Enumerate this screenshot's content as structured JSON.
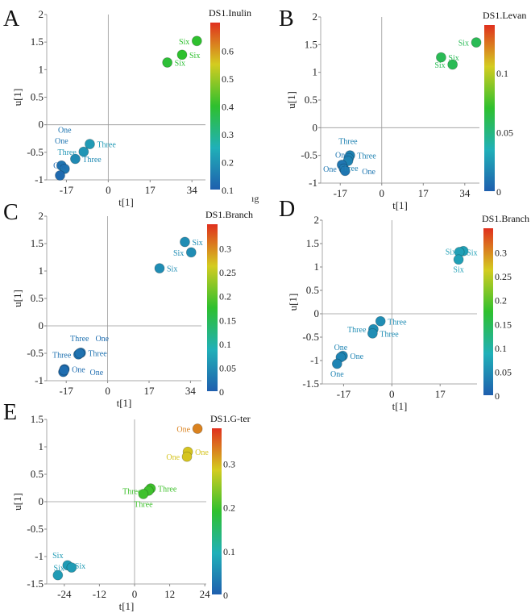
{
  "chart_data": [
    {
      "panel": "A",
      "type": "scatter",
      "xlabel": "t[1]",
      "ylabel": "u[1]",
      "xlim": [
        -25,
        39.5
      ],
      "ylim": [
        -1,
        2
      ],
      "xticks": [
        -17,
        0,
        17,
        34
      ],
      "yticks": [
        -1,
        -0.5,
        0,
        0.5,
        1,
        1.5,
        2
      ],
      "colorbar": {
        "title": "DS1.Inulin",
        "range": [
          0.1,
          0.7
        ],
        "ticks": [
          0.1,
          0.2,
          0.3,
          0.4,
          0.5,
          0.6
        ]
      },
      "points": [
        {
          "label": "Six",
          "x": 36,
          "y": 1.52,
          "c": 0.4
        },
        {
          "label": "Six",
          "x": 30,
          "y": 1.27,
          "c": 0.4
        },
        {
          "label": "Six",
          "x": 24,
          "y": 1.13,
          "c": 0.39
        },
        {
          "label": "Three",
          "x": -7.5,
          "y": -0.35,
          "c": 0.21
        },
        {
          "label": "Three",
          "x": -10,
          "y": -0.49,
          "c": 0.2
        },
        {
          "label": "Three",
          "x": -13.4,
          "y": -0.62,
          "c": 0.18
        },
        {
          "label": "One",
          "x": -19,
          "y": -0.74,
          "c": 0.14
        },
        {
          "label": "One",
          "x": -17.7,
          "y": -0.8,
          "c": 0.14
        },
        {
          "label": "One",
          "x": -19.6,
          "y": -0.92,
          "c": 0.12
        }
      ]
    },
    {
      "panel": "B",
      "type": "scatter",
      "xlabel": "t[1]",
      "ylabel": "u[1]",
      "xlim": [
        -25,
        40
      ],
      "ylim": [
        -1,
        2
      ],
      "xticks": [
        -17,
        0,
        17,
        34
      ],
      "yticks": [
        -1,
        -0.5,
        0,
        0.5,
        1,
        1.5,
        2
      ],
      "colorbar": {
        "title": "DS1.Levan",
        "range": [
          0,
          0.14
        ],
        "ticks": [
          0,
          0.05,
          0.1
        ]
      },
      "points": [
        {
          "label": "Six",
          "x": 38.7,
          "y": 1.54,
          "c": 0.06
        },
        {
          "label": "Six",
          "x": 24.3,
          "y": 1.27,
          "c": 0.06
        },
        {
          "label": "Six",
          "x": 29,
          "y": 1.14,
          "c": 0.06
        },
        {
          "label": "Three",
          "x": -13,
          "y": -0.5,
          "c": 0.015
        },
        {
          "label": "Three",
          "x": -13.5,
          "y": -0.55,
          "c": 0.015
        },
        {
          "label": "Three",
          "x": -13.8,
          "y": -0.6,
          "c": 0.015
        },
        {
          "label": "One",
          "x": -16.3,
          "y": -0.67,
          "c": 0.01
        },
        {
          "label": "One",
          "x": -15.5,
          "y": -0.74,
          "c": 0.01
        },
        {
          "label": "One",
          "x": -15,
          "y": -0.78,
          "c": 0.01
        }
      ]
    },
    {
      "panel": "C",
      "type": "scatter",
      "xlabel": "t[1]",
      "ylabel": "u[1]",
      "xlim": [
        -25,
        38.5
      ],
      "ylim": [
        -1,
        2
      ],
      "xticks": [
        -17,
        0,
        17,
        34
      ],
      "yticks": [
        -1,
        -0.5,
        0,
        0.5,
        1,
        1.5,
        2
      ],
      "colorbar": {
        "title": "DS1.Branch",
        "range": [
          0,
          0.35
        ],
        "ticks": [
          0,
          0.05,
          0.1,
          0.15,
          0.2,
          0.25,
          0.3
        ]
      },
      "points": [
        {
          "label": "Six",
          "x": 31.7,
          "y": 1.53,
          "c": 0.05
        },
        {
          "label": "Six",
          "x": 34.3,
          "y": 1.34,
          "c": 0.05
        },
        {
          "label": "Six",
          "x": 21.3,
          "y": 1.05,
          "c": 0.05
        },
        {
          "label": "Three",
          "x": -11,
          "y": -0.49,
          "c": 0.02
        },
        {
          "label": "Three",
          "x": -12,
          "y": -0.52,
          "c": 0.02
        },
        {
          "label": "Three",
          "x": -11.5,
          "y": -0.5,
          "c": 0.02
        },
        {
          "label": "One",
          "x": -17.7,
          "y": -0.79,
          "c": 0.015
        },
        {
          "label": "One",
          "x": -18.2,
          "y": -0.84,
          "c": 0.015
        },
        {
          "label": "One",
          "x": -17.9,
          "y": -0.81,
          "c": 0.015
        }
      ]
    },
    {
      "panel": "D",
      "type": "scatter",
      "xlabel": "t[1]",
      "ylabel": "u[1]",
      "xlim": [
        -24.5,
        30
      ],
      "ylim": [
        -1.5,
        2
      ],
      "xticks": [
        -17,
        0,
        17
      ],
      "yticks": [
        -1.5,
        -1,
        -0.5,
        0,
        0.5,
        1,
        1.5,
        2
      ],
      "colorbar": {
        "title": "DS1.Branch",
        "range": [
          0,
          0.35
        ],
        "ticks": [
          0,
          0.05,
          0.1,
          0.15,
          0.2,
          0.25,
          0.3
        ]
      },
      "points": [
        {
          "label": "Six",
          "x": 25.2,
          "y": 1.34,
          "c": 0.07
        },
        {
          "label": "Six",
          "x": 23.8,
          "y": 1.32,
          "c": 0.07
        },
        {
          "label": "Six",
          "x": 23.5,
          "y": 1.16,
          "c": 0.07
        },
        {
          "label": "Three",
          "x": -4,
          "y": -0.16,
          "c": 0.05
        },
        {
          "label": "Three",
          "x": -6.5,
          "y": -0.33,
          "c": 0.05
        },
        {
          "label": "Three",
          "x": -6.8,
          "y": -0.42,
          "c": 0.05
        },
        {
          "label": "One",
          "x": -17.3,
          "y": -0.9,
          "c": 0.04
        },
        {
          "label": "One",
          "x": -18,
          "y": -0.93,
          "c": 0.04
        },
        {
          "label": "One",
          "x": -19.3,
          "y": -1.07,
          "c": 0.04
        }
      ]
    },
    {
      "panel": "E",
      "type": "scatter",
      "xlabel": "t[1]",
      "ylabel": "u[1]",
      "xlim": [
        -30,
        24.5
      ],
      "ylim": [
        -1.5,
        1.5
      ],
      "xticks": [
        -24,
        -12,
        0,
        12,
        24
      ],
      "yticks": [
        -1.5,
        -1,
        -0.5,
        0,
        0.5,
        1,
        1.5
      ],
      "colorbar": {
        "title": "DS1.G-ter",
        "range": [
          0,
          0.38
        ],
        "ticks": [
          0,
          0.1,
          0.2,
          0.3
        ]
      },
      "points": [
        {
          "label": "One",
          "x": 21.5,
          "y": 1.33,
          "c": 0.33
        },
        {
          "label": "One",
          "x": 18.2,
          "y": 0.91,
          "c": 0.29
        },
        {
          "label": "One",
          "x": 17.9,
          "y": 0.82,
          "c": 0.29
        },
        {
          "label": "Three",
          "x": 5.5,
          "y": 0.24,
          "c": 0.2
        },
        {
          "label": "Three",
          "x": 4.8,
          "y": 0.2,
          "c": 0.2
        },
        {
          "label": "Three",
          "x": 3,
          "y": 0.14,
          "c": 0.2
        },
        {
          "label": "Six",
          "x": -22.9,
          "y": -1.16,
          "c": 0.07
        },
        {
          "label": "Six",
          "x": -21.5,
          "y": -1.2,
          "c": 0.07
        },
        {
          "label": "Six",
          "x": -26.2,
          "y": -1.34,
          "c": 0.07
        }
      ]
    }
  ],
  "fragment_text": "ıg",
  "colormap": [
    "#1f5fae",
    "#20b0b8",
    "#2ec02e",
    "#d4cc20",
    "#e0301e"
  ]
}
